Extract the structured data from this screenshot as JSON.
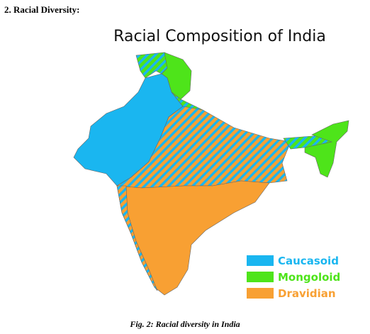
{
  "heading": "2. Racial Diversity:",
  "figure": {
    "title": "Racial Composition of India",
    "legend": [
      {
        "label": "Caucasoid",
        "color": "#1ab6f0"
      },
      {
        "label": "Mongoloid",
        "color": "#4ee41a"
      },
      {
        "label": "Dravidian",
        "color": "#f8a033"
      }
    ],
    "caption": "Fig. 2: Racial diversity in India"
  }
}
